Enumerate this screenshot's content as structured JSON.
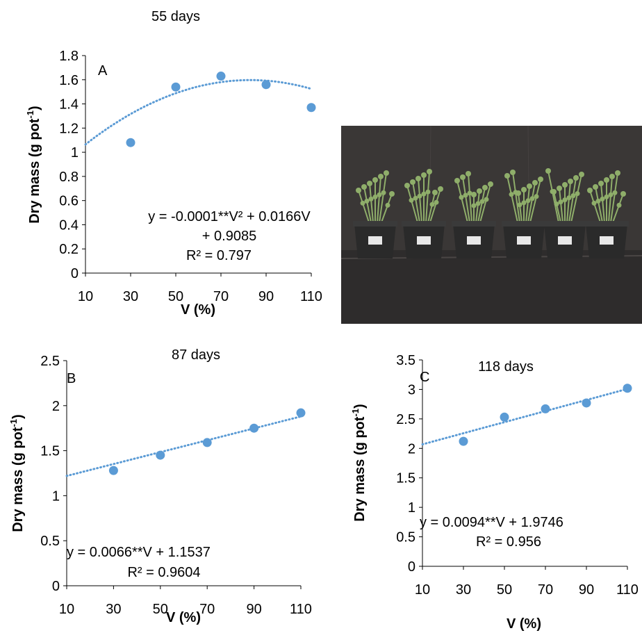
{
  "chart_data": [
    {
      "id": "A",
      "type": "scatter",
      "title": "55 days",
      "panel_label": "A",
      "xlabel": "V (%)",
      "ylabel": "Dry mass (g pot-1)",
      "ylabel_main": "Dry mass (g pot",
      "ylabel_sup": "-1",
      "ylabel_close": ")",
      "xlim": [
        10,
        110
      ],
      "ylim": [
        0,
        1.8
      ],
      "xticks": [
        "10",
        "30",
        "50",
        "70",
        "90",
        "110"
      ],
      "yticks": [
        "0",
        "0.2",
        "0.4",
        "0.6",
        "0.8",
        "1",
        "1.2",
        "1.4",
        "1.6",
        "1.8"
      ],
      "x": [
        30,
        50,
        70,
        90,
        110
      ],
      "y": [
        1.08,
        1.54,
        1.63,
        1.56,
        1.37
      ],
      "trendline": {
        "kind": "polynomial",
        "coef": [
          -0.0001,
          0.0166,
          0.9085
        ]
      },
      "equation_lines": [
        "y = -0.0001**V² + 0.0166V",
        "+ 0.9085",
        "R² = 0.797"
      ],
      "marker_color": "#5b9bd5",
      "trend_color": "#5b9bd5"
    },
    {
      "id": "B",
      "type": "scatter",
      "title": "87 days",
      "panel_label": "B",
      "xlabel": "V (%)",
      "ylabel": "Dry mass (g pot-1)",
      "ylabel_main": "Dry mass (g pot",
      "ylabel_sup": "-1",
      "ylabel_close": ")",
      "xlim": [
        10,
        110
      ],
      "ylim": [
        0,
        2.5
      ],
      "xticks": [
        "10",
        "30",
        "50",
        "70",
        "90",
        "110"
      ],
      "yticks": [
        "0",
        "0.5",
        "1",
        "1.5",
        "2",
        "2.5"
      ],
      "x": [
        30,
        50,
        70,
        90,
        110
      ],
      "y": [
        1.28,
        1.45,
        1.59,
        1.75,
        1.92
      ],
      "trendline": {
        "kind": "linear",
        "coef": [
          0.0066,
          1.1537
        ]
      },
      "equation_lines": [
        "y = 0.0066**V + 1.1537",
        "R² = 0.9604"
      ],
      "marker_color": "#5b9bd5",
      "trend_color": "#5b9bd5"
    },
    {
      "id": "C",
      "type": "scatter",
      "title": "118 days",
      "panel_label": "C",
      "xlabel": "V (%)",
      "ylabel": "Dry mass (g pot-1)",
      "ylabel_main": "Dry mass (g pot",
      "ylabel_sup": "-1",
      "ylabel_close": ")",
      "xlim": [
        10,
        110
      ],
      "ylim": [
        0,
        3.5
      ],
      "xticks": [
        "10",
        "30",
        "50",
        "70",
        "90",
        "110"
      ],
      "yticks": [
        "0",
        "0.5",
        "1",
        "1.5",
        "2",
        "2.5",
        "3",
        "3.5"
      ],
      "x": [
        30,
        50,
        70,
        90,
        110
      ],
      "y": [
        2.12,
        2.53,
        2.67,
        2.77,
        3.02
      ],
      "trendline": {
        "kind": "linear",
        "coef": [
          0.0094,
          1.9746
        ]
      },
      "equation_lines": [
        "y = 0.0094**V + 1.9746",
        "R² = 0.956"
      ],
      "marker_color": "#5b9bd5",
      "trend_color": "#5b9bd5"
    }
  ],
  "photo": {
    "backdrop_color": "#3a3736",
    "foliage_color": "#8fae6a",
    "pot_color": "#2a2a2a"
  }
}
